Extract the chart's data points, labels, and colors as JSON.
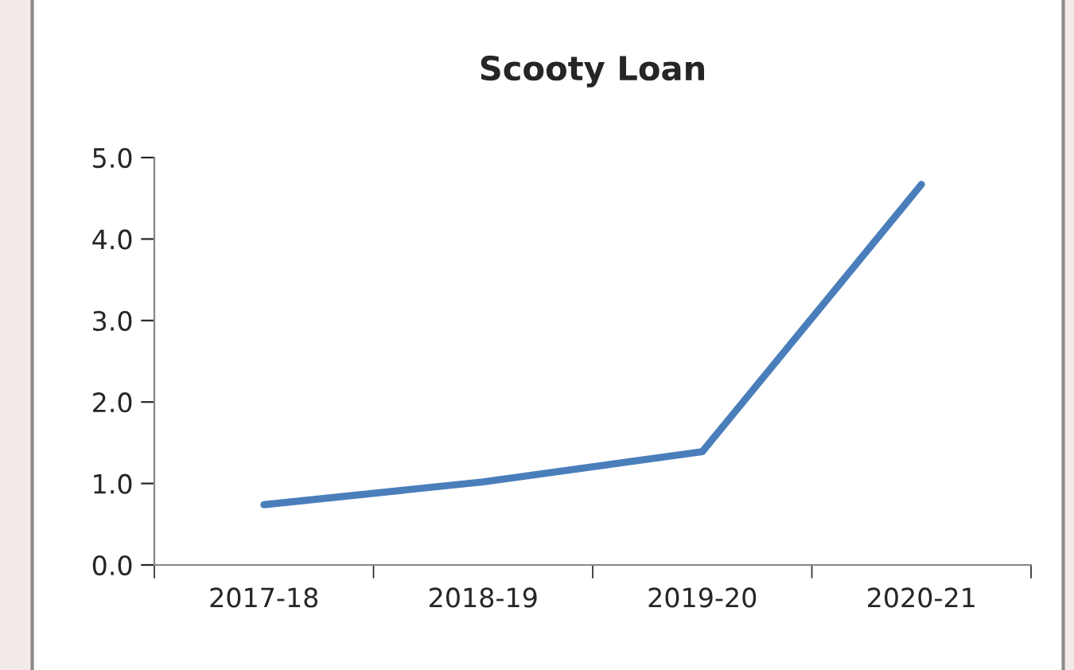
{
  "chart_data": {
    "type": "line",
    "title": "Scooty Loan",
    "categories": [
      "2017-18",
      "2018-19",
      "2019-20",
      "2020-21"
    ],
    "series": [
      {
        "color": "#4a7ebb",
        "values": [
          0.74,
          1.02,
          1.39,
          4.67
        ]
      }
    ],
    "ylim": [
      0,
      5
    ],
    "yticks": [
      {
        "value": 0,
        "label": "0.0"
      },
      {
        "value": 1,
        "label": "1.0"
      },
      {
        "value": 2,
        "label": "2.0"
      },
      {
        "value": 3,
        "label": "3.0"
      },
      {
        "value": 4,
        "label": "4.0"
      },
      {
        "value": 5,
        "label": "5.0"
      }
    ],
    "grid": false,
    "legend": false,
    "marker": "none",
    "line_style": "solid"
  }
}
